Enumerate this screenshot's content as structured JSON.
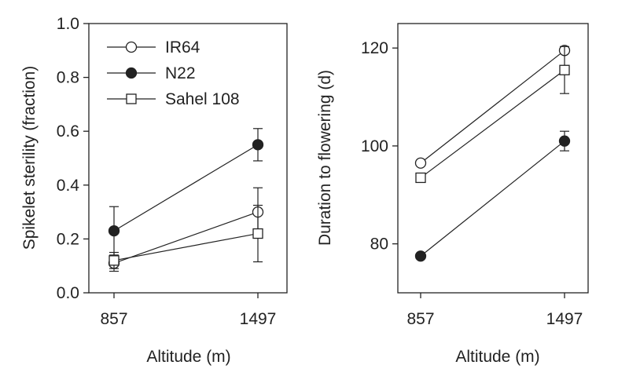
{
  "chart_data": [
    {
      "type": "line",
      "title": "",
      "xlabel": "Altitude (m)",
      "ylabel": "Spikelet sterility (fraction)",
      "categories": [
        "857",
        "1497"
      ],
      "ylim": [
        0.0,
        1.0
      ],
      "yticks": [
        "0.0",
        "0.2",
        "0.4",
        "0.6",
        "0.8",
        "1.0"
      ],
      "grid": false,
      "legend_position": "top-left",
      "series": [
        {
          "name": "IR64",
          "marker": "open-circle",
          "values": [
            0.11,
            0.3
          ],
          "errors": [
            0.03,
            0.09
          ]
        },
        {
          "name": "N22",
          "marker": "filled-circle",
          "values": [
            0.23,
            0.55
          ],
          "errors": [
            0.09,
            0.06
          ]
        },
        {
          "name": "Sahel 108",
          "marker": "open-square",
          "values": [
            0.12,
            0.22
          ],
          "errors": [
            0.03,
            0.105
          ]
        }
      ]
    },
    {
      "type": "line",
      "title": "",
      "xlabel": "Altitude (m)",
      "ylabel": "Duration to flowering (d)",
      "categories": [
        "857",
        "1497"
      ],
      "ylim": [
        70,
        125
      ],
      "yticks": [
        "80",
        "100",
        "120"
      ],
      "grid": false,
      "series": [
        {
          "marker": "open-circle",
          "values": [
            96.5,
            119.5
          ],
          "errors": [
            0,
            0
          ]
        },
        {
          "marker": "filled-circle",
          "values": [
            77.5,
            101
          ],
          "errors": [
            0,
            2
          ]
        },
        {
          "marker": "open-square",
          "values": [
            93.5,
            115.5
          ],
          "errors": [
            0,
            4.8
          ]
        }
      ]
    }
  ]
}
